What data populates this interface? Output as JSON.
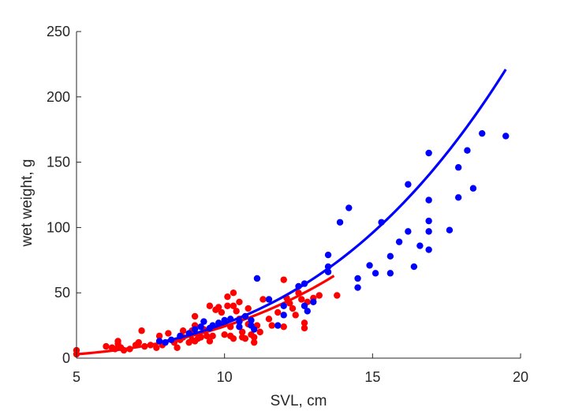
{
  "chart_data": {
    "type": "scatter",
    "xlabel": "SVL, cm",
    "ylabel": "wet weight, g",
    "xlim": [
      5,
      20
    ],
    "ylim": [
      0,
      250
    ],
    "xticks": [
      5,
      10,
      15,
      20
    ],
    "yticks": [
      0,
      50,
      100,
      150,
      200,
      250
    ],
    "grid": false,
    "series": [
      {
        "color": "#ff0000",
        "points": [
          [
            5.0,
            3
          ],
          [
            5.0,
            6
          ],
          [
            6.0,
            9
          ],
          [
            6.2,
            8
          ],
          [
            6.3,
            7
          ],
          [
            6.4,
            11
          ],
          [
            6.4,
            13
          ],
          [
            6.5,
            8
          ],
          [
            6.6,
            6
          ],
          [
            6.8,
            7
          ],
          [
            7.0,
            10
          ],
          [
            7.1,
            12
          ],
          [
            7.2,
            21
          ],
          [
            7.3,
            9
          ],
          [
            7.5,
            10
          ],
          [
            7.7,
            8
          ],
          [
            7.8,
            13
          ],
          [
            7.8,
            17
          ],
          [
            7.9,
            10
          ],
          [
            8.1,
            19
          ],
          [
            8.3,
            12
          ],
          [
            8.4,
            8
          ],
          [
            8.5,
            14
          ],
          [
            8.6,
            16
          ],
          [
            8.6,
            21
          ],
          [
            8.8,
            12
          ],
          [
            8.9,
            21
          ],
          [
            8.9,
            14
          ],
          [
            9.0,
            13
          ],
          [
            9.0,
            25
          ],
          [
            9.0,
            32
          ],
          [
            9.1,
            15
          ],
          [
            9.2,
            16
          ],
          [
            9.3,
            22
          ],
          [
            9.4,
            17
          ],
          [
            9.5,
            13
          ],
          [
            9.5,
            40
          ],
          [
            9.6,
            17
          ],
          [
            9.7,
            37
          ],
          [
            9.8,
            39
          ],
          [
            9.9,
            35
          ],
          [
            10.0,
            18
          ],
          [
            10.0,
            27
          ],
          [
            10.1,
            40
          ],
          [
            10.1,
            47
          ],
          [
            10.2,
            24
          ],
          [
            10.2,
            17
          ],
          [
            10.3,
            15
          ],
          [
            10.3,
            40
          ],
          [
            10.3,
            50
          ],
          [
            10.4,
            36
          ],
          [
            10.5,
            30
          ],
          [
            10.5,
            43
          ],
          [
            10.6,
            20
          ],
          [
            10.6,
            16
          ],
          [
            10.7,
            15
          ],
          [
            10.8,
            38
          ],
          [
            10.8,
            26
          ],
          [
            10.9,
            18
          ],
          [
            11.0,
            16
          ],
          [
            11.0,
            12
          ],
          [
            11.1,
            25
          ],
          [
            11.2,
            20
          ],
          [
            11.3,
            45
          ],
          [
            11.5,
            30
          ],
          [
            11.6,
            25
          ],
          [
            11.8,
            35
          ],
          [
            12.0,
            60
          ],
          [
            12.0,
            24
          ],
          [
            12.1,
            46
          ],
          [
            12.2,
            42
          ],
          [
            12.3,
            38
          ],
          [
            12.4,
            33
          ],
          [
            12.5,
            50
          ],
          [
            12.6,
            45
          ],
          [
            12.7,
            27
          ],
          [
            12.7,
            23
          ],
          [
            12.8,
            43
          ],
          [
            13.0,
            46
          ],
          [
            13.2,
            48
          ],
          [
            13.8,
            48
          ]
        ],
        "fit": {
          "x_range": [
            5,
            13.7
          ],
          "y_start": 3,
          "y_end": 63
        }
      },
      {
        "color": "#0000ff",
        "points": [
          [
            7.8,
            13
          ],
          [
            8.0,
            12
          ],
          [
            8.2,
            14
          ],
          [
            8.5,
            17
          ],
          [
            8.8,
            19
          ],
          [
            9.0,
            22
          ],
          [
            9.2,
            24
          ],
          [
            9.3,
            28
          ],
          [
            9.5,
            23
          ],
          [
            9.6,
            25
          ],
          [
            9.8,
            27
          ],
          [
            10.0,
            29
          ],
          [
            10.2,
            30
          ],
          [
            10.5,
            24
          ],
          [
            10.5,
            28
          ],
          [
            10.7,
            32
          ],
          [
            10.9,
            25
          ],
          [
            10.9,
            29
          ],
          [
            11.0,
            22
          ],
          [
            11.1,
            61
          ],
          [
            11.5,
            45
          ],
          [
            11.8,
            25
          ],
          [
            12.0,
            40
          ],
          [
            12.0,
            33
          ],
          [
            12.5,
            55
          ],
          [
            12.7,
            57
          ],
          [
            12.7,
            40
          ],
          [
            12.8,
            36
          ],
          [
            13.0,
            43
          ],
          [
            13.5,
            79
          ],
          [
            13.5,
            66
          ],
          [
            13.5,
            70
          ],
          [
            13.9,
            104
          ],
          [
            14.2,
            115
          ],
          [
            14.5,
            61
          ],
          [
            14.5,
            54
          ],
          [
            14.9,
            71
          ],
          [
            15.1,
            65
          ],
          [
            15.3,
            104
          ],
          [
            15.6,
            65
          ],
          [
            15.6,
            78
          ],
          [
            15.9,
            89
          ],
          [
            16.2,
            133
          ],
          [
            16.2,
            97
          ],
          [
            16.4,
            70
          ],
          [
            16.6,
            86
          ],
          [
            16.9,
            157
          ],
          [
            16.9,
            121
          ],
          [
            16.9,
            105
          ],
          [
            16.9,
            97
          ],
          [
            16.9,
            83
          ],
          [
            17.6,
            98
          ],
          [
            17.9,
            146
          ],
          [
            17.9,
            123
          ],
          [
            18.2,
            159
          ],
          [
            18.4,
            130
          ],
          [
            18.7,
            172
          ],
          [
            19.5,
            170
          ]
        ],
        "fit": {
          "x_range": [
            8,
            19.5
          ],
          "y_start": 13,
          "y_end": 221
        }
      }
    ]
  }
}
